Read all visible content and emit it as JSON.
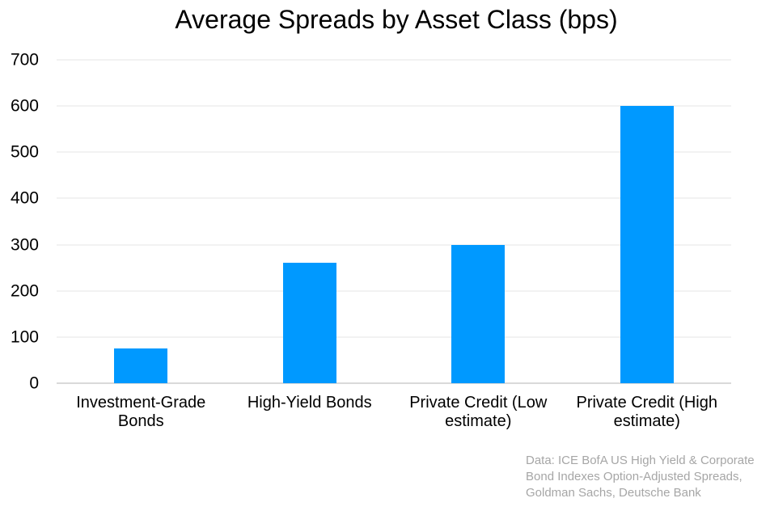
{
  "chart_data": {
    "type": "bar",
    "title": "Average Spreads by Asset Class (bps)",
    "categories": [
      "Investment-Grade Bonds",
      "High-Yield Bonds",
      "Private Credit (Low estimate)",
      "Private Credit (High estimate)"
    ],
    "values": [
      75,
      260,
      300,
      600
    ],
    "xlabel": "",
    "ylabel": "",
    "ylim": [
      0,
      700
    ],
    "y_ticks": [
      0,
      100,
      200,
      300,
      400,
      500,
      600,
      700
    ],
    "grid": true,
    "legend": "none",
    "bar_color": "#0099ff",
    "gridline_color": "#f2f2f2",
    "baseline_color": "#d9d9d9",
    "text_color": "#000000",
    "source_color": "#a6a6a6",
    "source_note": "Data: ICE BofA US High Yield & Corporate\nBond Indexes Option-Adjusted Spreads,\nGoldman Sachs, Deutsche Bank"
  }
}
